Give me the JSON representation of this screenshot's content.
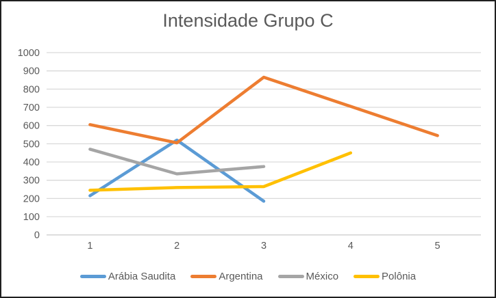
{
  "chart_data": {
    "type": "line",
    "title": "Intensidade Grupo C",
    "categories": [
      "1",
      "2",
      "3",
      "4",
      "5"
    ],
    "series": [
      {
        "name": "Arábia Saudita",
        "color": "#5B9BD5",
        "values": [
          215,
          520,
          185,
          null,
          null
        ]
      },
      {
        "name": "Argentina",
        "color": "#ED7D31",
        "values": [
          605,
          505,
          865,
          705,
          545
        ]
      },
      {
        "name": "México",
        "color": "#A5A5A5",
        "values": [
          470,
          335,
          375,
          null,
          null
        ]
      },
      {
        "name": "Polônia",
        "color": "#FFC000",
        "values": [
          245,
          260,
          265,
          450,
          null
        ]
      }
    ],
    "ylim": [
      0,
      1000
    ],
    "y_ticks": [
      0,
      100,
      200,
      300,
      400,
      500,
      600,
      700,
      800,
      900,
      1000
    ],
    "xlabel": "",
    "ylabel": "",
    "grid": true,
    "legend_position": "bottom"
  },
  "colors": {
    "background": "#FFFFFF",
    "frame_border": "#1F1F1F",
    "text": "#595959",
    "gridline": "#D9D9D9",
    "axis_line": "#CFCFCF"
  }
}
